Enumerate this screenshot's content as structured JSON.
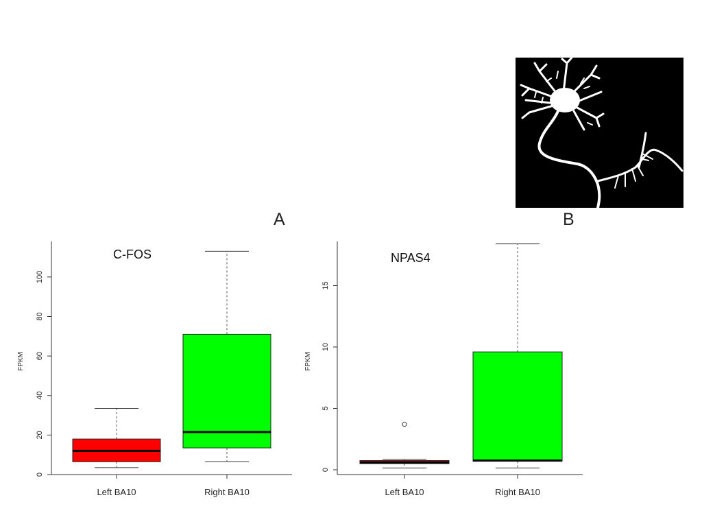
{
  "panel_labels": {
    "a": "A",
    "b": "B"
  },
  "colors": {
    "left": "#ff0000",
    "right": "#00ff00",
    "median": "#000000",
    "axis": "#333333"
  },
  "image": {
    "subject": "neuron-silhouette"
  },
  "chart_data": [
    {
      "type": "boxplot",
      "title": "C-FOS",
      "ylabel": "FPKM",
      "xlabel": "",
      "ylim": [
        0,
        118
      ],
      "yticks": [
        0,
        20,
        40,
        60,
        80,
        100
      ],
      "categories": [
        "Left BA10",
        "Right BA10"
      ],
      "boxes": [
        {
          "name": "Left BA10",
          "color": "#ff0000",
          "whisker_low": 3.5,
          "q1": 6.5,
          "median": 12,
          "q3": 18,
          "whisker_high": 33.5,
          "outliers": []
        },
        {
          "name": "Right BA10",
          "color": "#00ff00",
          "whisker_low": 6.5,
          "q1": 13.5,
          "median": 21.5,
          "q3": 71,
          "whisker_high": 113,
          "outliers": []
        }
      ],
      "grid": false
    },
    {
      "type": "boxplot",
      "title": "NPAS4",
      "ylabel": "FPKM",
      "xlabel": "",
      "ylim": [
        0,
        18.6
      ],
      "yticks": [
        0,
        5,
        10,
        15
      ],
      "categories": [
        "Left BA10",
        "Right BA10"
      ],
      "boxes": [
        {
          "name": "Left BA10",
          "color": "#ff0000",
          "whisker_low": 0.15,
          "q1": 0.5,
          "median": 0.6,
          "q3": 0.75,
          "whisker_high": 0.85,
          "outliers": [
            3.7
          ]
        },
        {
          "name": "Right BA10",
          "color": "#00ff00",
          "whisker_low": 0.15,
          "q1": 0.7,
          "median": 0.75,
          "q3": 9.6,
          "whisker_high": 18.4,
          "outliers": []
        }
      ],
      "grid": false
    }
  ]
}
